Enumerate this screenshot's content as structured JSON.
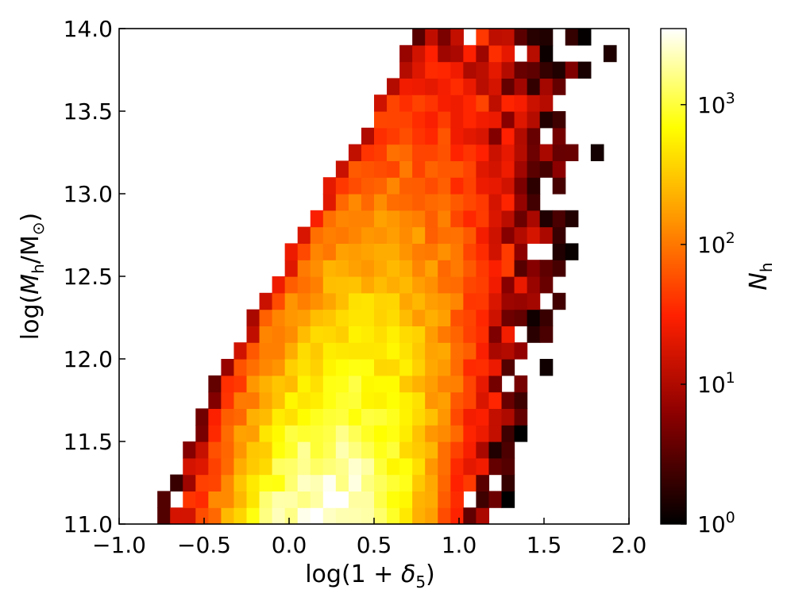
{
  "chart_data": {
    "type": "heatmap",
    "x_label_parts": {
      "pre": "log(1 + ",
      "sym": "δ",
      "sub": "5",
      "post": ")"
    },
    "y_label_parts": {
      "pre": "log(",
      "sym": "M",
      "sub": "h",
      "mid": "/M",
      "sub2": "⊙",
      "post": ")"
    },
    "colorbar_label_parts": {
      "sym": "N",
      "sub": "h"
    },
    "xlim": [
      -1.0,
      2.0
    ],
    "ylim": [
      11.0,
      14.0
    ],
    "x_ticks": [
      -1.0,
      -0.5,
      0.0,
      0.5,
      1.0,
      1.5,
      2.0
    ],
    "x_tick_labels": [
      "−1.0",
      "−0.5",
      "0.0",
      "0.5",
      "1.0",
      "1.5",
      "2.0"
    ],
    "y_ticks": [
      11.0,
      11.5,
      12.0,
      12.5,
      13.0,
      13.5,
      14.0
    ],
    "y_tick_labels": [
      "11.0",
      "11.5",
      "12.0",
      "12.5",
      "13.0",
      "13.5",
      "14.0"
    ],
    "colorbar": {
      "scale": "log",
      "range": [
        1,
        3500
      ],
      "ticks": [
        {
          "value": 1,
          "base": "10",
          "exp": "0"
        },
        {
          "value": 10,
          "base": "10",
          "exp": "1"
        },
        {
          "value": 100,
          "base": "10",
          "exp": "2"
        },
        {
          "value": 1000,
          "base": "10",
          "exp": "3"
        }
      ],
      "colormap": "hot",
      "colormap_stops": [
        "#000000",
        "#8b0000",
        "#ff2000",
        "#ff9900",
        "#ffff00",
        "#ffffff"
      ]
    },
    "bins": {
      "x_start": -1.0,
      "x_step": 0.075,
      "nx": 40,
      "y_start": 11.0,
      "y_step": 0.1,
      "ny": 30
    },
    "density_model": {
      "description": "2D histogram of halo counts; peak near log(1+delta5)=0.2, log(Mh)=11.05; upper-left boundary rising from (-0.9,11.0) to (0.75,14.0)",
      "peak_count": 3500,
      "peak_x": 0.2,
      "peak_y": 11.0
    }
  }
}
